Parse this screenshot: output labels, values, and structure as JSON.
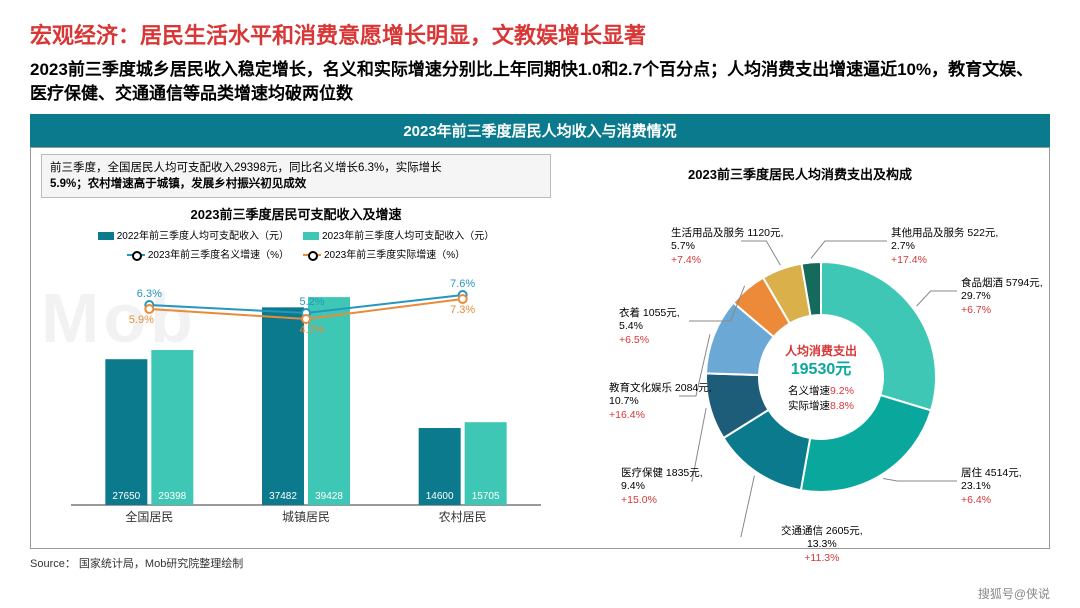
{
  "title": {
    "text": "宏观经济：居民生活水平和消费意愿增长明显，文教娱增长显著",
    "color": "#d93636"
  },
  "subtitle": "2023前三季度城乡居民收入稳定增长，名义和实际增速分别比上年同期快1.0和2.7个百分点；人均消费支出增速逼近10%，教育文娱、医疗保健、交通通信等品类增速均破两位数",
  "banner": "2023年前三季度居民人均收入与消费情况",
  "note": {
    "l1": "前三季度，全国居民人均可支配收入29398元，同比名义增长6.3%，实际增长",
    "l2": "5.9%；农村增速高于城镇，发展乡村振兴初见成效"
  },
  "bar_chart": {
    "title": "2023前三季度居民可支配收入及增速",
    "legend": {
      "b1": "2022年前三季度人均可支配收入（元）",
      "b2": "2023年前三季度人均可支配收入（元）",
      "l1": "2023年前三季度名义增速（%）",
      "l2": "2023年前三季度实际增速（%）"
    },
    "colors": {
      "b1": "#0a7a8c",
      "b2": "#3fc7b5",
      "l1": "#2596be",
      "l2": "#e88b3a"
    },
    "categories": [
      "全国居民",
      "城镇居民",
      "农村居民"
    ],
    "bars2022": [
      27650,
      37482,
      14600
    ],
    "bars2023": [
      29398,
      39428,
      15705
    ],
    "nominal": [
      "6.3%",
      "5.2%",
      "7.6%"
    ],
    "real": [
      "5.9%",
      "4.7%",
      "7.3%"
    ],
    "ymax": 44000,
    "line_y": {
      "nom": [
        200,
        192,
        210
      ],
      "real": [
        196,
        186,
        206
      ]
    }
  },
  "donut": {
    "title": "2023前三季度居民人均消费支出及构成",
    "center": {
      "l1": "人均消费支出",
      "amt": "19530元",
      "l2a": "名义增速",
      "l2b": "9.2%",
      "l3a": "实际增速",
      "l3b": "8.8%",
      "amt_color": "#0aa89c",
      "l1_color": "#d93636",
      "rate_color": "#d93636"
    },
    "slices": [
      {
        "name": "食品烟酒",
        "val": 5794,
        "pct": 29.7,
        "growth": "+6.7%",
        "color": "#3fc7b5"
      },
      {
        "name": "居住",
        "val": 4514,
        "pct": 23.1,
        "growth": "+6.4%",
        "color": "#0aa89c"
      },
      {
        "name": "交通通信",
        "val": 2605,
        "pct": 13.3,
        "growth": "+11.3%",
        "color": "#0a7a8c"
      },
      {
        "name": "医疗保健",
        "val": 1835,
        "pct": 9.4,
        "growth": "+15.0%",
        "color": "#1e5d7a"
      },
      {
        "name": "教育文化娱乐",
        "val": 2084,
        "pct": 10.7,
        "growth": "+16.4%",
        "color": "#6ba8d6"
      },
      {
        "name": "衣着",
        "val": 1055,
        "pct": 5.4,
        "growth": "+6.5%",
        "color": "#ed8a3a"
      },
      {
        "name": "生活用品及服务",
        "val": 1120,
        "pct": 5.7,
        "growth": "+7.4%",
        "color": "#d9b04a"
      },
      {
        "name": "其他用品及服务",
        "val": 522,
        "pct": 2.7,
        "growth": "+17.4%",
        "color": "#146b5b"
      }
    ]
  },
  "source": "Source：  国家统计局，Mob研究院整理绘制",
  "footer": "搜狐号@侠说",
  "watermark": "Mob"
}
